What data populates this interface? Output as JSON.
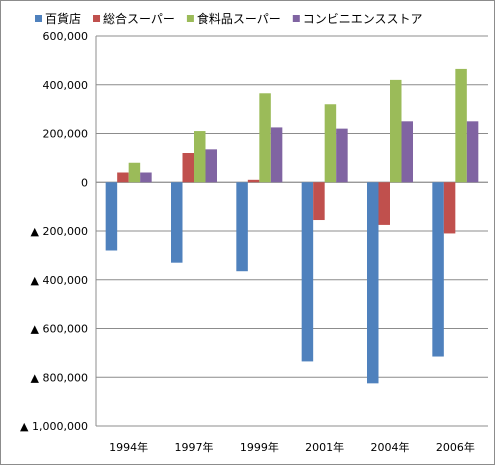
{
  "chart_data": {
    "type": "bar",
    "title": "",
    "xlabel": "",
    "ylabel": "",
    "categories": [
      "1994年",
      "1997年",
      "1999年",
      "2001年",
      "2004年",
      "2006年"
    ],
    "series": [
      {
        "name": "百貨店",
        "color": "#4f81bd",
        "values": [
          -280000,
          -330000,
          -365000,
          -735000,
          -825000,
          -715000
        ]
      },
      {
        "name": "総合スーパー",
        "color": "#c0504d",
        "values": [
          40000,
          120000,
          10000,
          -155000,
          -175000,
          -210000
        ]
      },
      {
        "name": "食料品スーパー",
        "color": "#9bbb59",
        "values": [
          80000,
          210000,
          365000,
          320000,
          420000,
          465000
        ]
      },
      {
        "name": "コンビニエンスストア",
        "color": "#8064a2",
        "values": [
          40000,
          135000,
          225000,
          220000,
          250000,
          250000
        ]
      }
    ],
    "ylim": [
      -1000000,
      600000
    ],
    "yticks": [
      600000,
      400000,
      200000,
      0,
      -200000,
      -400000,
      -600000,
      -800000,
      -1000000
    ],
    "ytick_labels": [
      "600,000",
      "400,000",
      "200,000",
      "0",
      "▲ 200,000",
      "▲ 400,000",
      "▲ 600,000",
      "▲ 800,000",
      "▲ 1,000,000"
    ],
    "grid": true,
    "legend_position": "top"
  }
}
